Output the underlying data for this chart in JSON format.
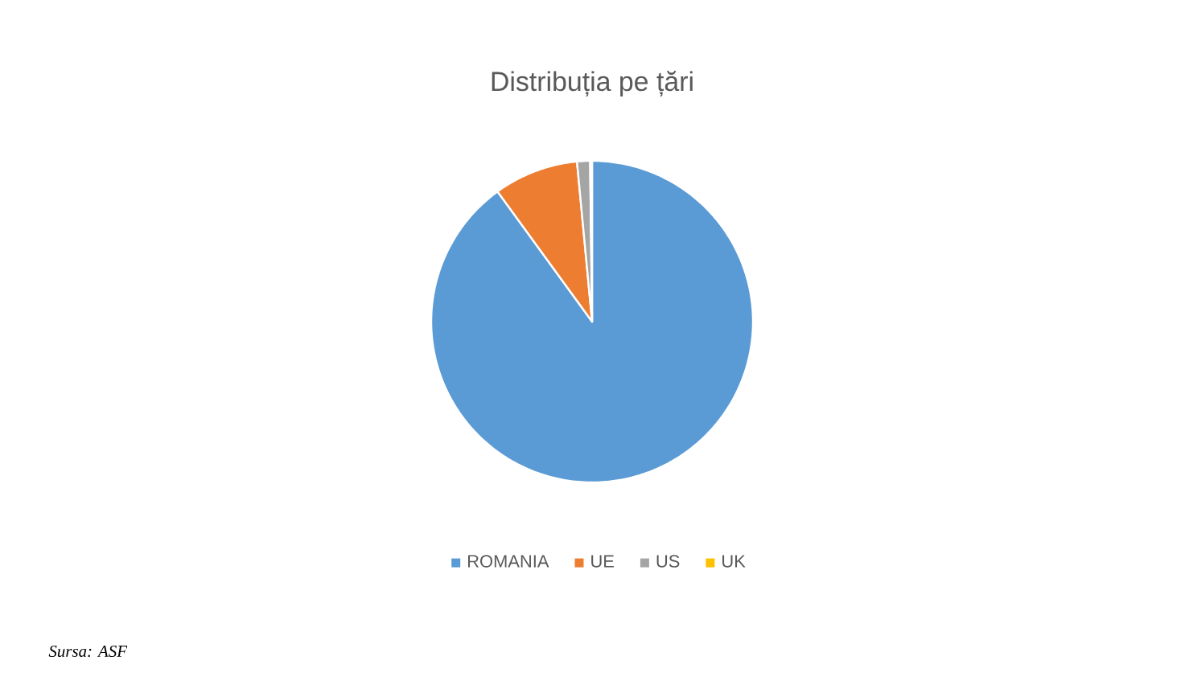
{
  "chart_data": {
    "type": "pie",
    "title": "Distribuția pe țări",
    "categories": [
      "ROMANIA",
      "UE",
      "US",
      "UK"
    ],
    "values": [
      90,
      8.5,
      1.3,
      0.2
    ],
    "colors": [
      "#5b9bd5",
      "#ed7d31",
      "#a5a5a5",
      "#ffc000"
    ],
    "legend": "bottom",
    "annotations": [
      "Sursa: ASF"
    ]
  }
}
